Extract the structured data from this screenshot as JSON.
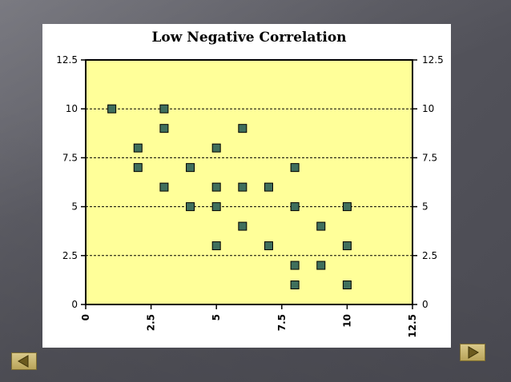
{
  "chart_data": {
    "type": "scatter",
    "title": "Low Negative Correlation",
    "xlabel": "",
    "ylabel": "",
    "xlim": [
      0,
      12.5
    ],
    "ylim": [
      0,
      12.5
    ],
    "xticks": [
      0,
      2.5,
      5,
      7.5,
      10,
      12.5
    ],
    "yticks": [
      0,
      2.5,
      5,
      7.5,
      10,
      12.5
    ],
    "xtick_labels": [
      "0",
      "2.5",
      "5",
      "7.5",
      "10",
      "12.5"
    ],
    "ytick_labels": [
      "0",
      "2.5",
      "5",
      "7.5",
      "10",
      "12.5"
    ],
    "grid": "horizontal dashed",
    "points": [
      {
        "x": 1,
        "y": 10
      },
      {
        "x": 3,
        "y": 10
      },
      {
        "x": 3,
        "y": 9
      },
      {
        "x": 6,
        "y": 9
      },
      {
        "x": 2,
        "y": 8
      },
      {
        "x": 5,
        "y": 8
      },
      {
        "x": 2,
        "y": 7
      },
      {
        "x": 4,
        "y": 7
      },
      {
        "x": 8,
        "y": 7
      },
      {
        "x": 3,
        "y": 6
      },
      {
        "x": 5,
        "y": 6
      },
      {
        "x": 6,
        "y": 6
      },
      {
        "x": 7,
        "y": 6
      },
      {
        "x": 4,
        "y": 5
      },
      {
        "x": 5,
        "y": 5
      },
      {
        "x": 8,
        "y": 5
      },
      {
        "x": 10,
        "y": 5
      },
      {
        "x": 6,
        "y": 4
      },
      {
        "x": 9,
        "y": 4
      },
      {
        "x": 5,
        "y": 3
      },
      {
        "x": 7,
        "y": 3
      },
      {
        "x": 10,
        "y": 3
      },
      {
        "x": 8,
        "y": 2
      },
      {
        "x": 9,
        "y": 2
      },
      {
        "x": 8,
        "y": 1
      },
      {
        "x": 10,
        "y": 1
      }
    ]
  },
  "colors": {
    "plot_background": "#ffff99",
    "marker_fill": "#3f6f5c",
    "marker_edge": "#000000",
    "nav_button": "#c8b46c"
  },
  "navigation": {
    "prev_icon": "left-arrow-icon",
    "next_icon": "right-arrow-icon"
  }
}
